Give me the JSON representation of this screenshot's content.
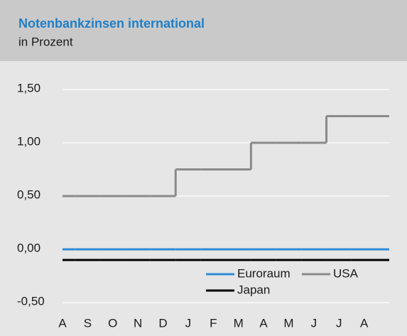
{
  "chart_data": {
    "type": "step-line",
    "title": "Notenbankzinsen international",
    "subtitle": "in Prozent",
    "categories": [
      "A",
      "S",
      "O",
      "N",
      "D",
      "J",
      "F",
      "M",
      "A",
      "M",
      "J",
      "J",
      "A"
    ],
    "series": [
      {
        "name": "Euroraum",
        "color": "#2f8ad6",
        "values": [
          0,
          0,
          0,
          0,
          0,
          0,
          0,
          0,
          0,
          0,
          0,
          0,
          0
        ]
      },
      {
        "name": "USA",
        "color": "#8a8a8a",
        "values": [
          0.5,
          0.5,
          0.5,
          0.5,
          0.5,
          0.75,
          0.75,
          0.75,
          1,
          1,
          1,
          1.25,
          1.25
        ]
      },
      {
        "name": "Japan",
        "color": "#000000",
        "values": [
          -0.1,
          -0.1,
          -0.1,
          -0.1,
          -0.1,
          -0.1,
          -0.1,
          -0.1,
          -0.1,
          -0.1,
          -0.1,
          -0.1,
          -0.1
        ]
      }
    ],
    "ylim": [
      -0.5,
      1.5
    ],
    "yticks": [
      {
        "value": -0.5,
        "label": "-0,50"
      },
      {
        "value": 0,
        "label": "0,00"
      },
      {
        "value": 0.5,
        "label": "0,50"
      },
      {
        "value": 1,
        "label": "1,00"
      },
      {
        "value": 1.5,
        "label": "1,50"
      }
    ],
    "grid": true
  }
}
